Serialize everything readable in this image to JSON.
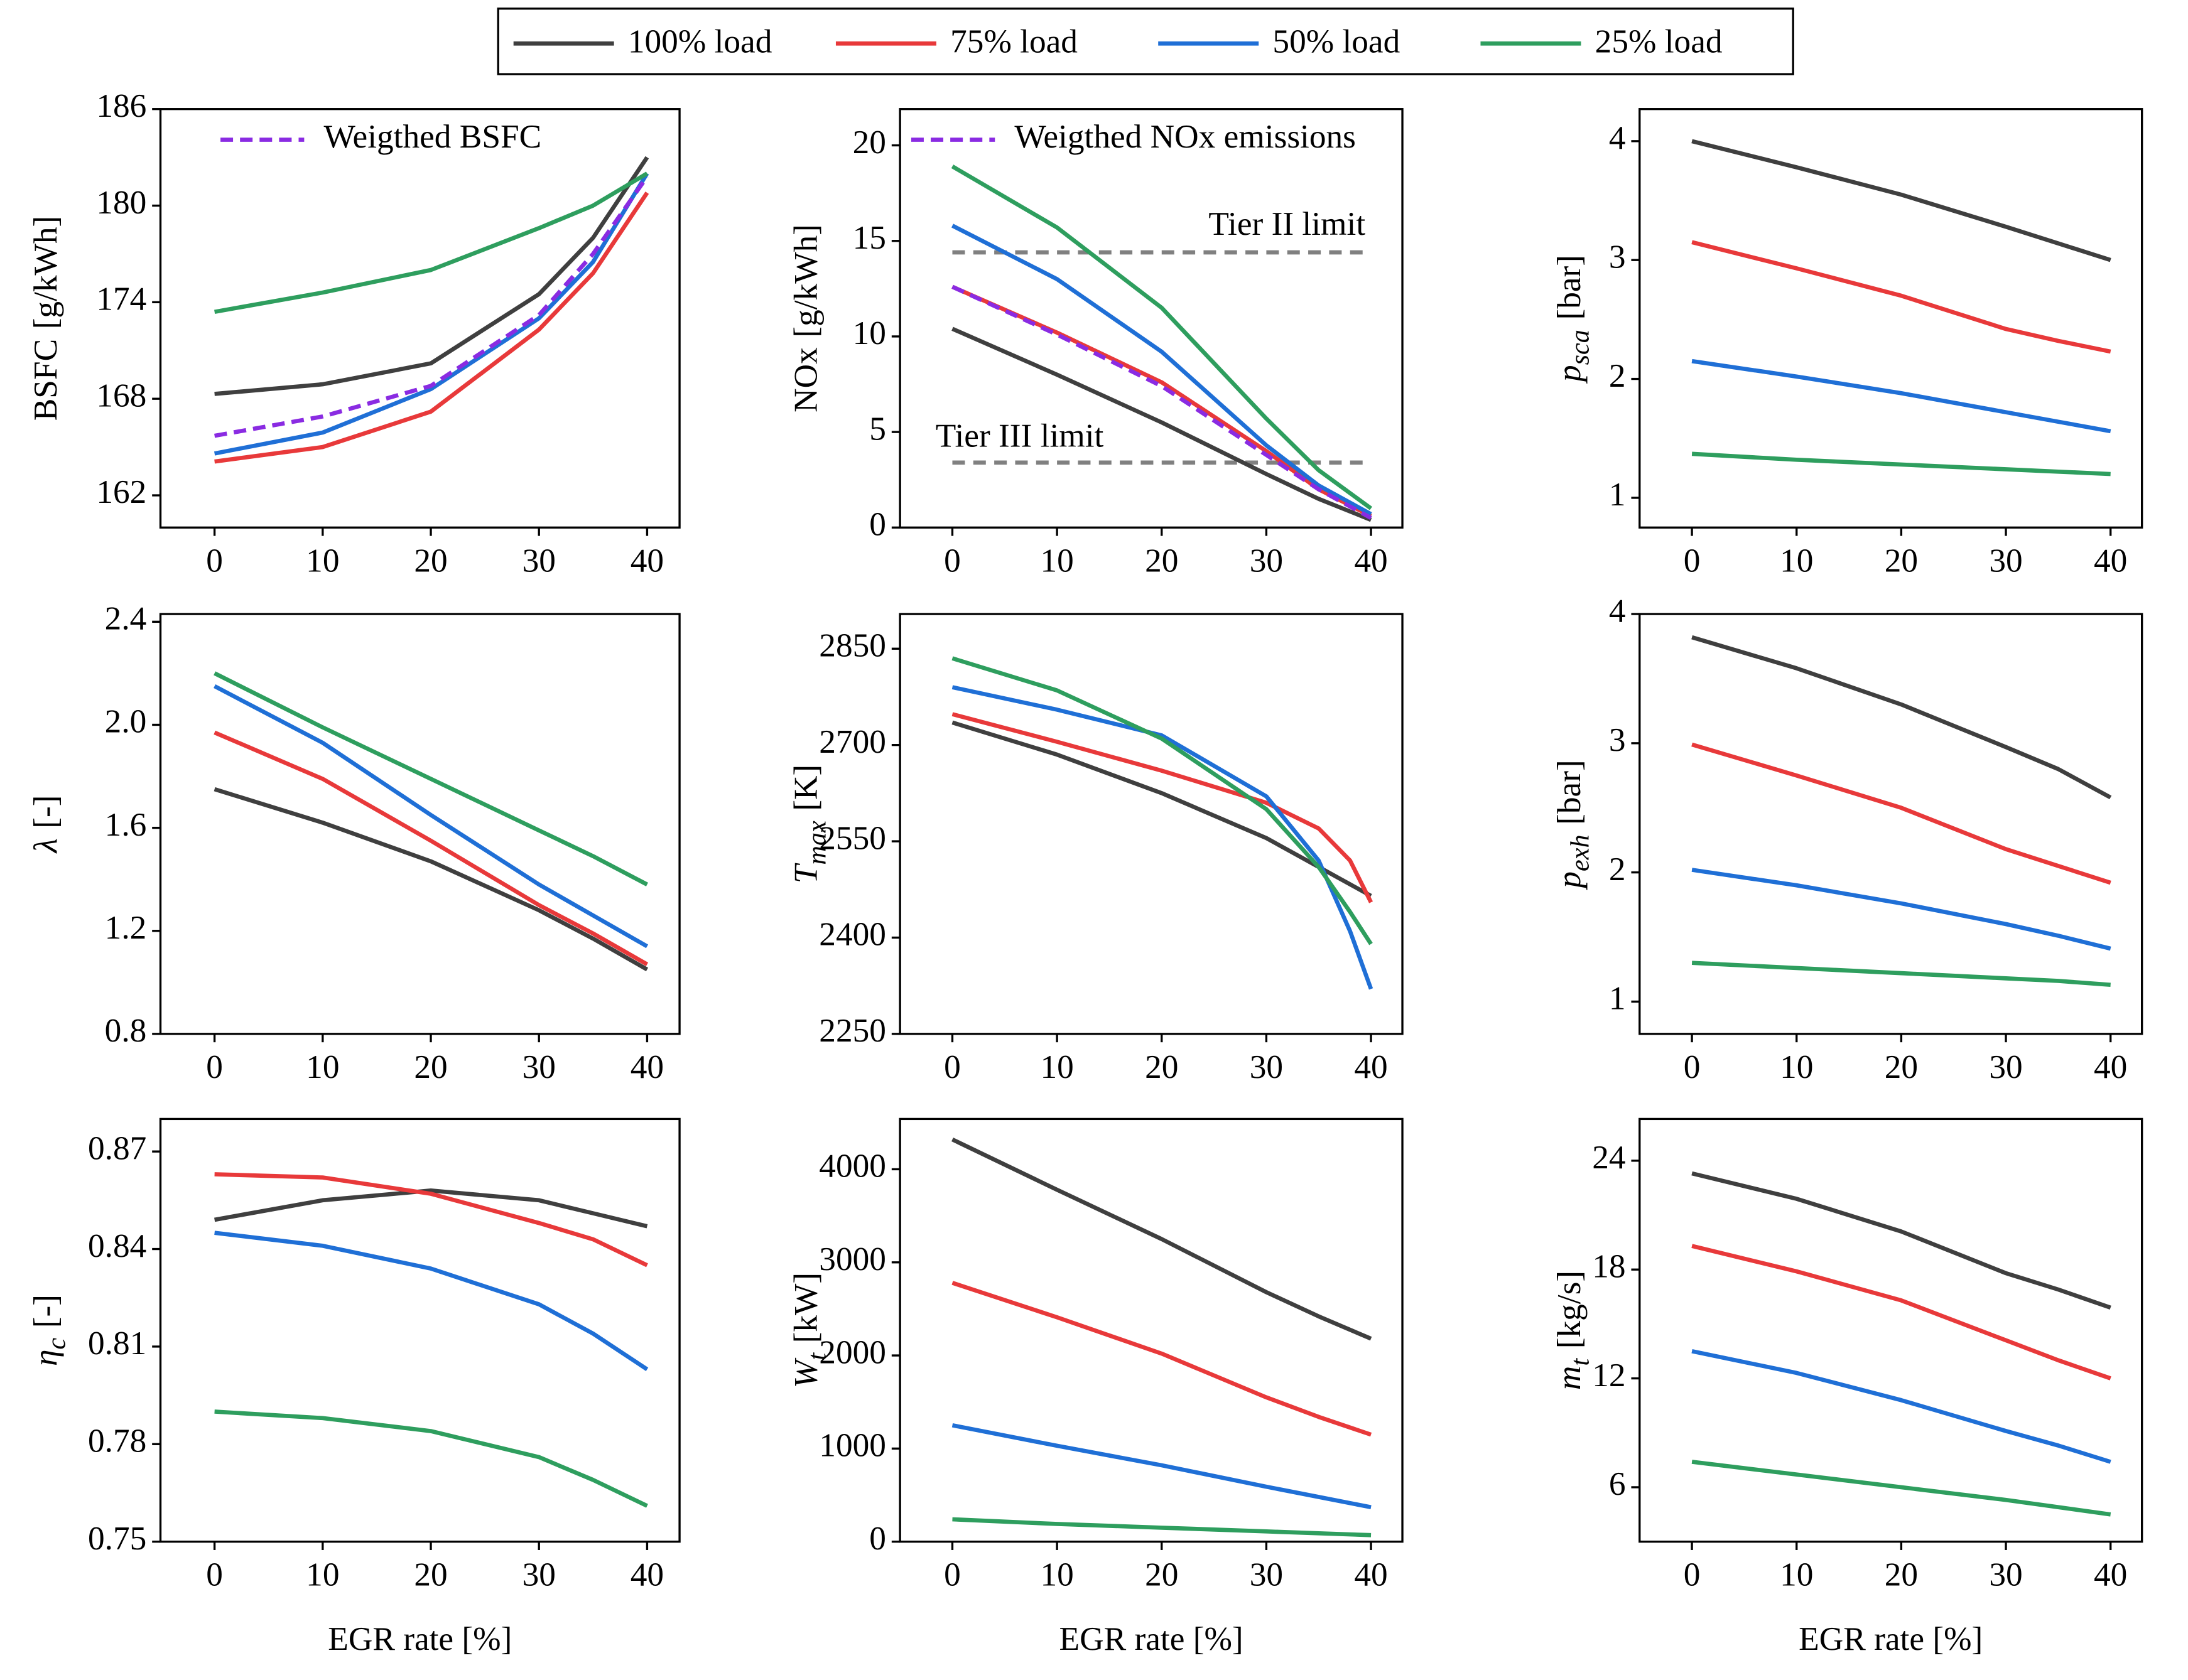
{
  "legend": [
    {
      "name": "100% load",
      "color": "#3f3f3f"
    },
    {
      "name": "75% load",
      "color": "#e8393a"
    },
    {
      "name": "50% load",
      "color": "#1f6fd6"
    },
    {
      "name": "25% load",
      "color": "#2e9e5e"
    }
  ],
  "chart_data": [
    {
      "type": "line",
      "ylabel": {
        "main": "BSFC",
        "unit": "[g/kWh]"
      },
      "x": [
        0,
        10,
        20,
        30,
        35,
        40
      ],
      "xlim": [
        -5,
        43
      ],
      "xticks": [
        0,
        10,
        20,
        30,
        40
      ],
      "ylim": [
        160,
        186
      ],
      "yticks": [
        162,
        168,
        174,
        180,
        186
      ],
      "series": [
        {
          "values": [
            168.3,
            168.9,
            170.2,
            174.5,
            178,
            183
          ]
        },
        {
          "values": [
            164.1,
            165,
            167.2,
            172.3,
            175.8,
            180.8
          ]
        },
        {
          "values": [
            164.6,
            165.9,
            168.6,
            173,
            176.5,
            182
          ]
        },
        {
          "values": [
            173.4,
            174.6,
            176,
            178.6,
            180,
            182
          ]
        },
        {
          "name": "Weigthed BSFC",
          "color": "#8a2be2",
          "dash": true,
          "values": [
            165.7,
            166.9,
            168.8,
            173.2,
            177,
            181.8
          ]
        }
      ]
    },
    {
      "type": "line",
      "ylabel": {
        "main": "NOx",
        "unit": "[g/kWh]"
      },
      "x": [
        0,
        10,
        20,
        30,
        35,
        40
      ],
      "xlim": [
        -5,
        43
      ],
      "xticks": [
        0,
        10,
        20,
        30,
        40
      ],
      "ylim": [
        0,
        21.9
      ],
      "yticks": [
        0,
        5,
        10,
        15,
        20
      ],
      "series": [
        {
          "values": [
            10.4,
            8,
            5.5,
            2.8,
            1.5,
            0.4
          ]
        },
        {
          "values": [
            12.6,
            10.2,
            7.6,
            4,
            2,
            0.6
          ]
        },
        {
          "values": [
            15.8,
            13,
            9.2,
            4.3,
            2.2,
            0.7
          ]
        },
        {
          "values": [
            18.9,
            15.7,
            11.5,
            5.7,
            3,
            1
          ]
        },
        {
          "name": "Weigthed NOx emissions",
          "color": "#8a2be2",
          "dash": true,
          "values": [
            12.6,
            10.1,
            7.4,
            3.8,
            2,
            0.5
          ]
        }
      ],
      "hlines": [
        {
          "value": 14.4,
          "label": "Tier II limit"
        },
        {
          "value": 3.4,
          "label": "Tier III limit"
        }
      ]
    },
    {
      "type": "line",
      "ylabel": {
        "main": "p",
        "sub": "sca",
        "unit": "[bar]",
        "italic": true
      },
      "x": [
        0,
        10,
        20,
        30,
        35,
        40
      ],
      "xlim": [
        -5,
        43
      ],
      "xticks": [
        0,
        10,
        20,
        30,
        40
      ],
      "ylim": [
        0.75,
        4.27
      ],
      "yticks": [
        1,
        2,
        3,
        4
      ],
      "series": [
        {
          "values": [
            4,
            3.78,
            3.55,
            3.28,
            3.14,
            3
          ]
        },
        {
          "values": [
            3.15,
            2.93,
            2.7,
            2.42,
            2.32,
            2.23
          ]
        },
        {
          "values": [
            2.15,
            2.02,
            1.88,
            1.72,
            1.64,
            1.56
          ]
        },
        {
          "values": [
            1.37,
            1.32,
            1.28,
            1.24,
            1.22,
            1.2
          ]
        }
      ]
    },
    {
      "type": "line",
      "ylabel": {
        "main": "λ",
        "unit": "[-]",
        "italic": true
      },
      "x": [
        0,
        10,
        20,
        30,
        35,
        40
      ],
      "xlim": [
        -5,
        43
      ],
      "xticks": [
        0,
        10,
        20,
        30,
        40
      ],
      "ylim": [
        0.8,
        2.43
      ],
      "yticks": [
        {
          "value": 0.8,
          "label": "0.8"
        },
        {
          "value": 1.2,
          "label": "1.2"
        },
        1.6,
        {
          "value": 2.0,
          "label": "2.0"
        },
        2.4
      ],
      "series": [
        {
          "values": [
            1.75,
            1.62,
            1.47,
            1.28,
            1.17,
            1.05
          ]
        },
        {
          "values": [
            1.97,
            1.79,
            1.55,
            1.3,
            1.19,
            1.07
          ]
        },
        {
          "values": [
            2.15,
            1.93,
            1.65,
            1.38,
            1.26,
            1.14
          ]
        },
        {
          "values": [
            2.2,
            1.99,
            1.79,
            1.59,
            1.49,
            1.38
          ]
        }
      ]
    },
    {
      "type": "line",
      "ylabel": {
        "main": "T",
        "sub": "max",
        "unit": "[K]",
        "italic": true
      },
      "x": [
        0,
        10,
        20,
        30,
        35,
        38,
        40
      ],
      "xlim": [
        -5,
        43
      ],
      "xticks": [
        0,
        10,
        20,
        30,
        40
      ],
      "ylim": [
        2250,
        2904
      ],
      "yticks": [
        2250,
        2400,
        2550,
        2700,
        2850
      ],
      "series": [
        {
          "values": [
            2735,
            2685,
            2625,
            2555,
            2510,
            2483,
            2465
          ]
        },
        {
          "values": [
            2748,
            2705,
            2660,
            2610,
            2570,
            2520,
            2455
          ]
        },
        {
          "values": [
            2790,
            2755,
            2715,
            2620,
            2520,
            2410,
            2320
          ]
        },
        {
          "values": [
            2835,
            2785,
            2710,
            2600,
            2510,
            2440,
            2390
          ]
        }
      ]
    },
    {
      "type": "line",
      "ylabel": {
        "main": "p",
        "sub": "exh",
        "unit": "[bar]",
        "italic": true
      },
      "x": [
        0,
        10,
        20,
        30,
        35,
        40
      ],
      "xlim": [
        -5,
        43
      ],
      "xticks": [
        0,
        10,
        20,
        30,
        40
      ],
      "ylim": [
        0.75,
        4
      ],
      "yticks": [
        1,
        2,
        3,
        4
      ],
      "series": [
        {
          "values": [
            3.82,
            3.58,
            3.3,
            2.97,
            2.8,
            2.58
          ]
        },
        {
          "values": [
            2.99,
            2.75,
            2.5,
            2.18,
            2.05,
            1.92
          ]
        },
        {
          "values": [
            2.02,
            1.9,
            1.76,
            1.6,
            1.51,
            1.41
          ]
        },
        {
          "values": [
            1.3,
            1.26,
            1.22,
            1.18,
            1.16,
            1.13
          ]
        }
      ]
    },
    {
      "type": "line",
      "ylabel": {
        "main": "η",
        "sub": "c",
        "unit": "[-]",
        "italic": true
      },
      "xlabel": "EGR rate [%]",
      "x": [
        0,
        10,
        20,
        30,
        35,
        40
      ],
      "xlim": [
        -5,
        43
      ],
      "xticks": [
        0,
        10,
        20,
        30,
        40
      ],
      "ylim": [
        0.75,
        0.88
      ],
      "yticks": [
        0.75,
        0.78,
        0.81,
        0.84,
        0.87
      ],
      "series": [
        {
          "values": [
            0.849,
            0.855,
            0.858,
            0.855,
            0.851,
            0.847
          ]
        },
        {
          "values": [
            0.863,
            0.862,
            0.857,
            0.848,
            0.843,
            0.835
          ]
        },
        {
          "values": [
            0.845,
            0.841,
            0.834,
            0.823,
            0.814,
            0.803
          ]
        },
        {
          "values": [
            0.79,
            0.788,
            0.784,
            0.776,
            0.769,
            0.761
          ]
        }
      ]
    },
    {
      "type": "line",
      "ylabel": {
        "main": "W",
        "sub": "t",
        "unit": "[kW]",
        "italic": true
      },
      "xlabel": "EGR rate [%]",
      "x": [
        0,
        10,
        20,
        30,
        35,
        40
      ],
      "xlim": [
        -5,
        43
      ],
      "xticks": [
        0,
        10,
        20,
        30,
        40
      ],
      "ylim": [
        0,
        4540
      ],
      "yticks": [
        0,
        1000,
        2000,
        3000,
        4000
      ],
      "series": [
        {
          "values": [
            4320,
            3780,
            3250,
            2680,
            2420,
            2180
          ]
        },
        {
          "values": [
            2780,
            2410,
            2020,
            1550,
            1340,
            1150
          ]
        },
        {
          "values": [
            1250,
            1030,
            820,
            590,
            480,
            370
          ]
        },
        {
          "values": [
            240,
            190,
            150,
            110,
            90,
            70
          ]
        }
      ]
    },
    {
      "type": "line",
      "ylabel": {
        "main": "m",
        "sub": "t",
        "unit": "[kg/s]",
        "italic": true
      },
      "xlabel": "EGR rate [%]",
      "x": [
        0,
        10,
        20,
        30,
        35,
        40
      ],
      "xlim": [
        -5,
        43
      ],
      "xticks": [
        0,
        10,
        20,
        30,
        40
      ],
      "ylim": [
        3,
        26.3
      ],
      "yticks": [
        6,
        12,
        18,
        24
      ],
      "series": [
        {
          "values": [
            23.3,
            21.9,
            20.1,
            17.8,
            16.9,
            15.9
          ]
        },
        {
          "values": [
            19.3,
            17.9,
            16.3,
            14.1,
            13,
            12
          ]
        },
        {
          "values": [
            13.5,
            12.3,
            10.8,
            9.1,
            8.3,
            7.4
          ]
        },
        {
          "values": [
            7.4,
            6.7,
            6,
            5.3,
            4.9,
            4.5
          ]
        }
      ]
    }
  ]
}
